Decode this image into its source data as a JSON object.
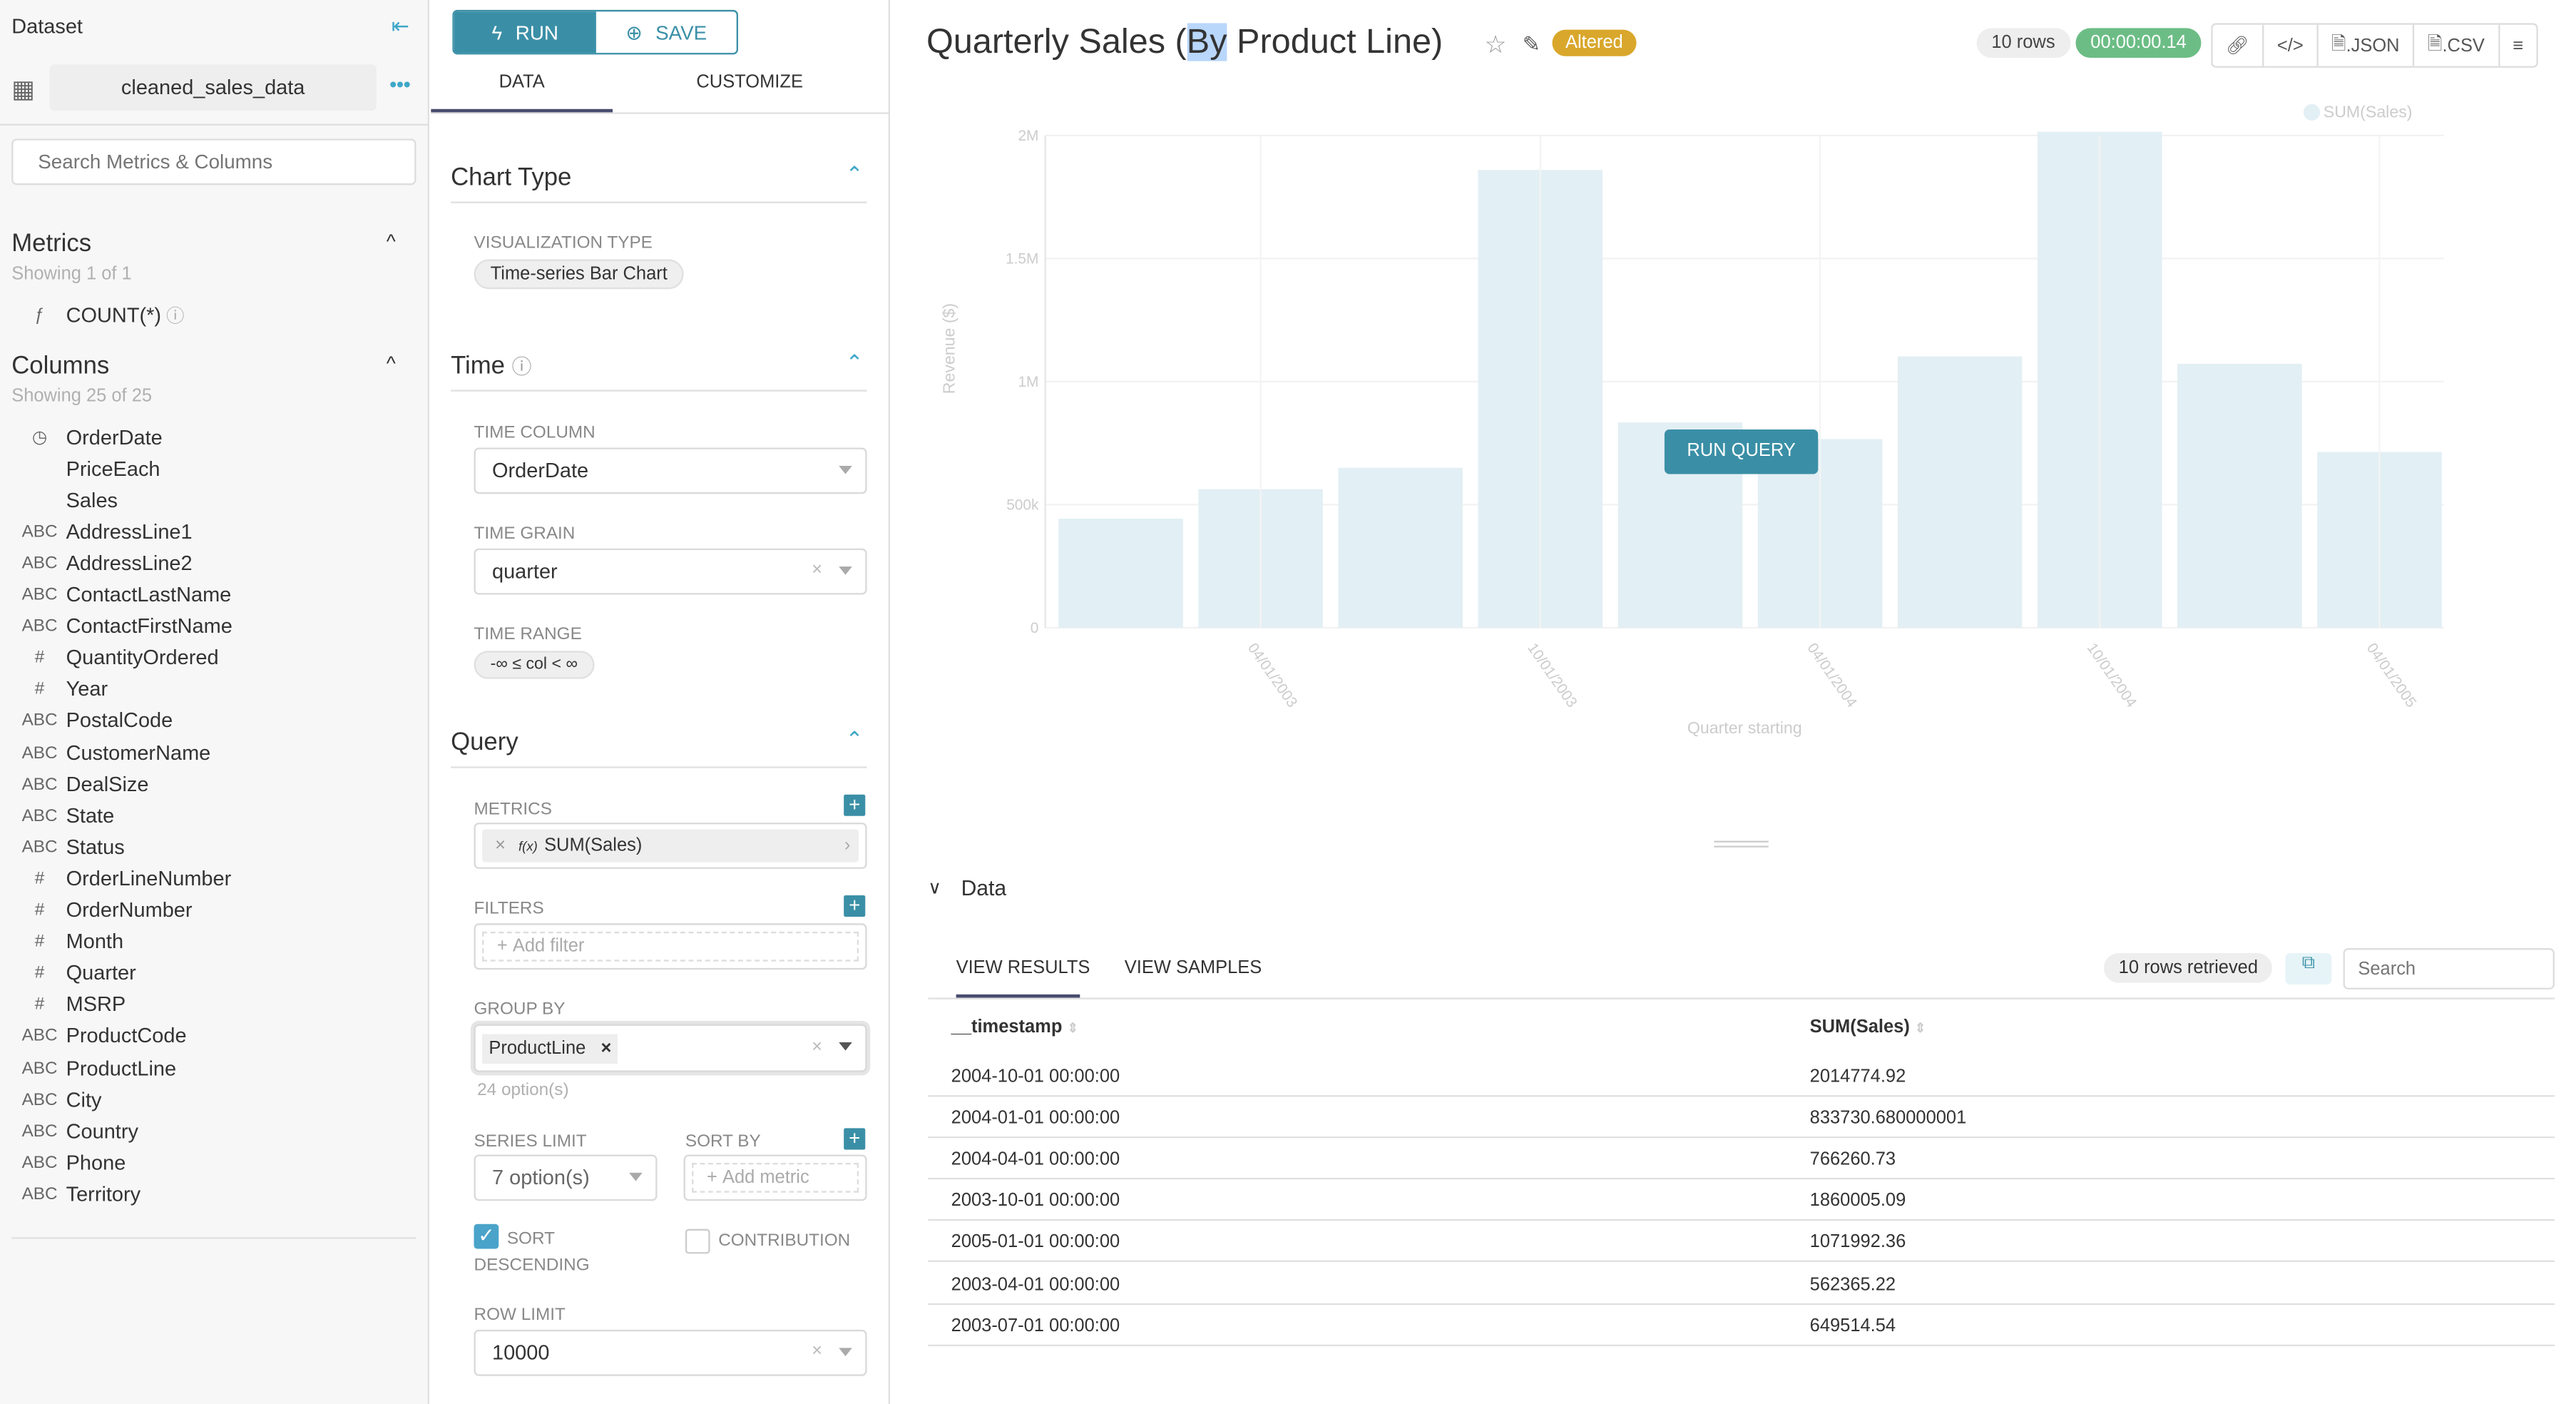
{
  "sidebar": {
    "title": "Dataset",
    "dataset_name": "cleaned_sales_data",
    "search_placeholder": "Search Metrics & Columns",
    "metrics_title": "Metrics",
    "metrics_count": "Showing 1 of 1",
    "metrics": [
      {
        "type": "ƒ",
        "name": "COUNT(*)"
      }
    ],
    "columns_title": "Columns",
    "columns_count": "Showing 25 of 25",
    "columns": [
      {
        "type": "clock",
        "name": "OrderDate"
      },
      {
        "type": "",
        "name": "PriceEach"
      },
      {
        "type": "",
        "name": "Sales"
      },
      {
        "type": "ABC",
        "name": "AddressLine1"
      },
      {
        "type": "ABC",
        "name": "AddressLine2"
      },
      {
        "type": "ABC",
        "name": "ContactLastName"
      },
      {
        "type": "ABC",
        "name": "ContactFirstName"
      },
      {
        "type": "#",
        "name": "QuantityOrdered"
      },
      {
        "type": "#",
        "name": "Year"
      },
      {
        "type": "ABC",
        "name": "PostalCode"
      },
      {
        "type": "ABC",
        "name": "CustomerName"
      },
      {
        "type": "ABC",
        "name": "DealSize"
      },
      {
        "type": "ABC",
        "name": "State"
      },
      {
        "type": "ABC",
        "name": "Status"
      },
      {
        "type": "#",
        "name": "OrderLineNumber"
      },
      {
        "type": "#",
        "name": "OrderNumber"
      },
      {
        "type": "#",
        "name": "Month"
      },
      {
        "type": "#",
        "name": "Quarter"
      },
      {
        "type": "#",
        "name": "MSRP"
      },
      {
        "type": "ABC",
        "name": "ProductCode"
      },
      {
        "type": "ABC",
        "name": "ProductLine"
      },
      {
        "type": "ABC",
        "name": "City"
      },
      {
        "type": "ABC",
        "name": "Country"
      },
      {
        "type": "ABC",
        "name": "Phone"
      },
      {
        "type": "ABC",
        "name": "Territory"
      }
    ]
  },
  "control_panel": {
    "run_label": "RUN",
    "save_label": "SAVE",
    "tabs": [
      "DATA",
      "CUSTOMIZE"
    ],
    "chart_type_title": "Chart Type",
    "viz_type_label": "VISUALIZATION TYPE",
    "viz_type_value": "Time-series Bar Chart",
    "time_title": "Time",
    "time_column_label": "TIME COLUMN",
    "time_column_value": "OrderDate",
    "time_grain_label": "TIME GRAIN",
    "time_grain_value": "quarter",
    "time_range_label": "TIME RANGE",
    "time_range_value": "-∞ ≤ col < ∞",
    "query_title": "Query",
    "metrics_label": "METRICS",
    "metric_value": "SUM(Sales)",
    "metric_fx": "f(x)",
    "filters_label": "FILTERS",
    "add_filter": "Add filter",
    "group_by_label": "GROUP BY",
    "group_by_value": "ProductLine",
    "group_by_options": "24 option(s)",
    "series_limit_label": "SERIES LIMIT",
    "series_limit_value": "7 option(s)",
    "sort_by_label": "SORT BY",
    "add_metric": "Add metric",
    "sort_desc_label": "SORT DESCENDING",
    "sort_desc_checked": true,
    "contribution_label": "CONTRIBUTION",
    "contribution_checked": false,
    "row_limit_label": "ROW LIMIT",
    "row_limit_value": "10000"
  },
  "header": {
    "title_before": "Quarterly Sales (",
    "title_selected": "By",
    "title_after": " Product Line)",
    "altered_badge": "Altered",
    "rows_badge": "10 rows",
    "timer": "00:00:00.14",
    "json_label": ".JSON",
    "csv_label": ".CSV",
    "colors": {
      "altered": "#d9a72b",
      "timer": "#6cbd85",
      "primary": "#3a8fa6"
    }
  },
  "run_query_label": "RUN QUERY",
  "chart_data": {
    "type": "bar",
    "xlabel": "Quarter starting",
    "ylabel": "Revenue ($)",
    "ylim": [
      0,
      2000000
    ],
    "y_ticks": [
      "0",
      "500k",
      "1M",
      "1.5M",
      "2M"
    ],
    "x_tick_labels": [
      "04/01/2003",
      "10/01/2003",
      "04/01/2004",
      "10/01/2004",
      "04/01/2005"
    ],
    "categories": [
      "2003-01-01",
      "2003-04-01",
      "2003-07-01",
      "2003-10-01",
      "2004-01-01",
      "2004-04-01",
      "2004-07-01",
      "2004-10-01",
      "2005-01-01",
      "2005-04-01"
    ],
    "series": [
      {
        "name": "SUM(Sales)",
        "color": "#e2eff4",
        "values": [
          443000,
          562365.22,
          649514.54,
          1860005.09,
          833730.68,
          766260.73,
          1102000,
          2014774.92,
          1071992.36,
          714000
        ]
      }
    ],
    "legend": "top-right",
    "grid": true
  },
  "data_panel": {
    "title": "Data",
    "tabs": [
      "VIEW RESULTS",
      "VIEW SAMPLES"
    ],
    "rows_retrieved": "10 rows retrieved",
    "search_placeholder": "Search",
    "columns": [
      "__timestamp",
      "SUM(Sales)"
    ],
    "rows": [
      [
        "2004-10-01 00:00:00",
        "2014774.92"
      ],
      [
        "2004-01-01 00:00:00",
        "833730.680000001"
      ],
      [
        "2004-04-01 00:00:00",
        "766260.73"
      ],
      [
        "2003-10-01 00:00:00",
        "1860005.09"
      ],
      [
        "2005-01-01 00:00:00",
        "1071992.36"
      ],
      [
        "2003-04-01 00:00:00",
        "562365.22"
      ],
      [
        "2003-07-01 00:00:00",
        "649514.54"
      ]
    ]
  }
}
